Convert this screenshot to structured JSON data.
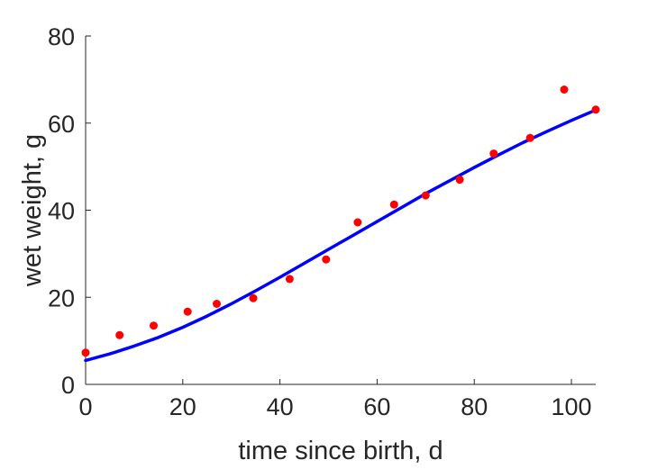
{
  "chart_data": {
    "type": "scatter",
    "xlabel": "time since birth, d",
    "ylabel": "wet weight, g",
    "xlim": [
      0,
      105
    ],
    "ylim": [
      0,
      80
    ],
    "x_ticks": [
      0,
      20,
      40,
      60,
      80,
      100
    ],
    "y_ticks": [
      0,
      20,
      40,
      60,
      80
    ],
    "grid": false,
    "box": false,
    "series": [
      {
        "kind": "points",
        "color": "#ff0000",
        "x": [
          0,
          7,
          14,
          21,
          27,
          34.5,
          42,
          49.5,
          56,
          63.5,
          70,
          77,
          84,
          91.5,
          98.5,
          105
        ],
        "y": [
          7.3,
          11.3,
          13.5,
          16.7,
          18.5,
          19.8,
          24.2,
          28.7,
          37.2,
          41.3,
          43.4,
          47.0,
          53.0,
          56.6,
          67.7,
          63.1
        ]
      },
      {
        "kind": "line",
        "color": "#0000ff",
        "x": [
          0,
          5,
          10,
          15,
          20,
          25,
          30,
          35,
          40,
          45,
          50,
          55,
          60,
          65,
          70,
          75,
          80,
          85,
          90,
          95,
          100,
          105
        ],
        "y": [
          5.5,
          7.0,
          8.8,
          10.8,
          13.1,
          15.7,
          18.5,
          21.5,
          24.6,
          27.8,
          31.0,
          34.2,
          37.4,
          40.6,
          43.8,
          46.8,
          49.8,
          52.7,
          55.5,
          58.1,
          60.6,
          63.0
        ]
      }
    ]
  }
}
